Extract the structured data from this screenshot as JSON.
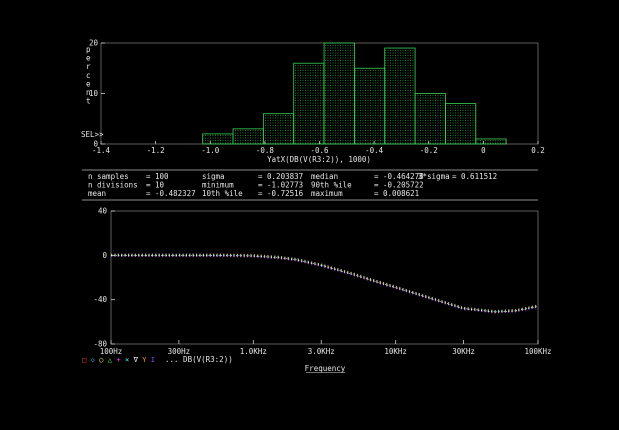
{
  "histogram": {
    "y_axis_label": "percent",
    "sel_marker": "SEL>>",
    "x_axis_title": "YatX(DB(V(R3:2)), 1000)",
    "chart_data": {
      "type": "bar",
      "title": "",
      "xlabel": "YatX(DB(V(R3:2)), 1000)",
      "ylabel": "percent",
      "xlim": [
        -1.4,
        0.2
      ],
      "ylim": [
        0,
        20
      ],
      "x_ticks": [
        "-1.4",
        "-1.2",
        "-1.0",
        "-0.8",
        "-0.6",
        "-0.4",
        "-0.2",
        "0",
        "0.2"
      ],
      "y_ticks": [
        "0",
        "10",
        "20"
      ],
      "bins": [
        {
          "from": -1.0277,
          "to": -0.9166,
          "value": 2
        },
        {
          "from": -0.9166,
          "to": -0.8055,
          "value": 3
        },
        {
          "from": -0.8055,
          "to": -0.6944,
          "value": 6
        },
        {
          "from": -0.6944,
          "to": -0.5833,
          "value": 16
        },
        {
          "from": -0.5833,
          "to": -0.4722,
          "value": 20
        },
        {
          "from": -0.4722,
          "to": -0.3611,
          "value": 15
        },
        {
          "from": -0.3611,
          "to": -0.25,
          "value": 19
        },
        {
          "from": -0.25,
          "to": -0.1388,
          "value": 10
        },
        {
          "from": -0.1388,
          "to": -0.0277,
          "value": 8
        },
        {
          "from": -0.0277,
          "to": 0.0834,
          "value": 1
        }
      ],
      "bar_color": "#39d353"
    }
  },
  "stats": {
    "rows": [
      [
        {
          "label": "n samples",
          "value": "= 100"
        },
        {
          "label": "sigma",
          "value": "= 0.203837"
        },
        {
          "label": "median",
          "value": "= -0.464278"
        },
        {
          "label": "3*sigma",
          "value": "= 0.611512"
        }
      ],
      [
        {
          "label": "n divisions",
          "value": "= 10"
        },
        {
          "label": "minimum",
          "value": "= -1.02773"
        },
        {
          "label": "90th %ile",
          "value": "= -0.205722"
        },
        {
          "label": "",
          "value": ""
        }
      ],
      [
        {
          "label": "mean",
          "value": "= -0.482327"
        },
        {
          "label": "10th %ile",
          "value": "= -0.72516"
        },
        {
          "label": "maximum",
          "value": "= 0.008621"
        },
        {
          "label": "",
          "value": ""
        }
      ]
    ]
  },
  "bode": {
    "legend_trace": "... DB(V(R3:2))",
    "x_axis_title": "Frequency",
    "chart_data": {
      "type": "line",
      "title": "",
      "xlabel": "Frequency",
      "ylabel": "",
      "x_scale": "log",
      "xlim_hz": [
        100,
        100000
      ],
      "ylim": [
        -80,
        40
      ],
      "x_ticks": [
        "100Hz",
        "300Hz",
        "1.0KHz",
        "3.0KHz",
        "10KHz",
        "30KHz",
        "100KHz"
      ],
      "y_ticks": [
        "40",
        "0",
        "-40",
        "-80"
      ],
      "series": [
        {
          "x": [
            100,
            200,
            300,
            500,
            800,
            1000,
            1500,
            2000,
            3000,
            5000,
            7000,
            10000,
            15000,
            20000,
            30000,
            50000,
            70000,
            100000
          ],
          "values": [
            0,
            0,
            0,
            0,
            -0.3,
            -0.5,
            -2,
            -4,
            -9,
            -17,
            -23,
            -29,
            -36,
            -41,
            -48,
            -51,
            -50,
            -46
          ]
        }
      ],
      "marker_colors": [
        "#ff4040",
        "#40a0ff",
        "#ffff40",
        "#40ff40",
        "#ff40ff",
        "#40ffff",
        "#ffffff",
        "#ff9040",
        "#9040ff"
      ]
    }
  }
}
